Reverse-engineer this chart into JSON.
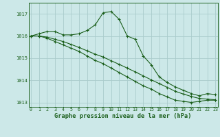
{
  "xlabel": "Graphe pression niveau de la mer (hPa)",
  "bg_color": "#cce8e8",
  "grid_color": "#aacccc",
  "line_color": "#1a5e1a",
  "x_values": [
    0,
    1,
    2,
    3,
    4,
    5,
    6,
    7,
    8,
    9,
    10,
    11,
    12,
    13,
    14,
    15,
    16,
    17,
    18,
    19,
    20,
    21,
    22,
    23
  ],
  "series1": [
    1016.0,
    1016.1,
    1016.2,
    1016.2,
    1016.05,
    1016.05,
    1016.1,
    1016.25,
    1016.5,
    1017.05,
    1017.1,
    1016.75,
    1016.0,
    1015.85,
    1015.1,
    1014.7,
    1014.15,
    1013.9,
    1013.7,
    1013.55,
    1013.4,
    1013.3,
    1013.4,
    1013.35
  ],
  "series2": [
    1016.0,
    1016.0,
    1015.9,
    1015.75,
    1015.6,
    1015.45,
    1015.3,
    1015.1,
    1014.9,
    1014.75,
    1014.55,
    1014.35,
    1014.15,
    1013.95,
    1013.75,
    1013.6,
    1013.4,
    1013.25,
    1013.1,
    1013.05,
    1013.0,
    1013.05,
    1013.1,
    1013.1
  ],
  "series3": [
    1016.0,
    1016.0,
    1015.95,
    1015.85,
    1015.75,
    1015.62,
    1015.48,
    1015.33,
    1015.18,
    1015.05,
    1014.88,
    1014.72,
    1014.55,
    1014.38,
    1014.2,
    1014.02,
    1013.85,
    1013.68,
    1013.5,
    1013.38,
    1013.27,
    1013.18,
    1013.15,
    1013.12
  ],
  "ylim": [
    1012.8,
    1017.5
  ],
  "yticks": [
    1013,
    1014,
    1015,
    1016,
    1017
  ],
  "xticks": [
    0,
    1,
    2,
    3,
    4,
    5,
    6,
    7,
    8,
    9,
    10,
    11,
    12,
    13,
    14,
    15,
    16,
    17,
    18,
    19,
    20,
    21,
    22,
    23
  ]
}
